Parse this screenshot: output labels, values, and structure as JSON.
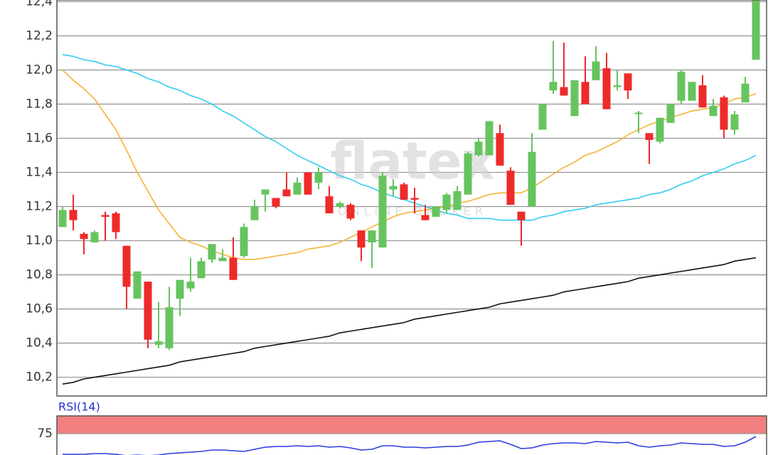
{
  "chart_data": [
    {
      "type": "candlestick",
      "open": [
        11.08,
        11.18,
        11.04,
        10.99,
        11.15,
        11.16,
        10.97,
        10.66,
        10.76,
        10.39,
        10.37,
        10.66,
        10.72,
        10.78,
        10.89,
        10.88,
        10.9,
        10.91,
        11.12,
        11.27,
        11.25,
        11.3,
        11.27,
        11.4,
        11.34,
        11.26,
        11.2,
        11.21,
        11.06,
        10.99,
        10.96,
        11.3,
        11.33,
        11.25,
        11.15,
        11.14,
        11.18,
        11.18,
        11.27,
        11.5,
        11.5,
        11.63,
        11.41,
        11.17,
        11.2,
        11.65,
        11.88,
        11.9,
        11.73,
        11.93,
        11.94,
        12.01,
        11.9,
        11.98,
        11.75,
        11.63,
        11.58,
        11.69,
        11.82,
        11.82,
        11.91,
        11.73,
        11.84,
        11.65,
        11.81,
        12.06
      ],
      "high": [
        11.2,
        11.27,
        11.05,
        11.06,
        11.17,
        11.17,
        10.97,
        10.82,
        10.76,
        10.64,
        10.73,
        10.77,
        10.9,
        10.9,
        10.98,
        10.95,
        11.02,
        11.1,
        11.24,
        11.3,
        11.25,
        11.4,
        11.37,
        11.4,
        11.43,
        11.32,
        11.23,
        11.22,
        11.06,
        11.06,
        11.4,
        11.36,
        11.34,
        11.31,
        11.21,
        11.2,
        11.28,
        11.32,
        11.52,
        11.6,
        11.7,
        11.68,
        11.43,
        11.17,
        11.63,
        11.8,
        12.17,
        12.16,
        11.94,
        12.08,
        12.14,
        12.1,
        12.0,
        11.98,
        11.76,
        11.63,
        11.72,
        11.8,
        12.0,
        11.93,
        11.97,
        11.83,
        11.85,
        11.76,
        11.96,
        12.42
      ],
      "low": [
        11.08,
        11.06,
        10.92,
        10.99,
        11.0,
        11.01,
        10.6,
        10.66,
        10.37,
        10.37,
        10.36,
        10.56,
        10.7,
        10.78,
        10.87,
        10.88,
        10.77,
        10.9,
        11.12,
        11.17,
        11.19,
        11.26,
        11.27,
        11.27,
        11.3,
        11.16,
        11.19,
        11.12,
        10.88,
        10.84,
        10.96,
        11.26,
        11.24,
        11.16,
        11.12,
        11.14,
        11.16,
        11.18,
        11.27,
        11.49,
        11.5,
        11.44,
        11.21,
        10.97,
        11.2,
        11.65,
        11.86,
        11.85,
        11.73,
        11.8,
        11.94,
        11.77,
        11.88,
        11.83,
        11.63,
        11.45,
        11.57,
        11.69,
        11.8,
        11.82,
        11.78,
        11.73,
        11.6,
        11.62,
        11.81,
        12.06
      ],
      "close": [
        11.18,
        11.12,
        11.01,
        11.05,
        11.14,
        11.05,
        10.73,
        10.82,
        10.42,
        10.41,
        10.61,
        10.77,
        10.76,
        10.88,
        10.98,
        10.9,
        10.77,
        11.08,
        11.2,
        11.3,
        11.2,
        11.26,
        11.34,
        11.27,
        11.4,
        11.16,
        11.22,
        11.13,
        10.96,
        11.06,
        11.38,
        11.32,
        11.24,
        11.24,
        11.12,
        11.2,
        11.27,
        11.29,
        11.51,
        11.58,
        11.7,
        11.44,
        11.21,
        11.12,
        11.52,
        11.8,
        11.93,
        11.85,
        11.94,
        11.8,
        12.05,
        11.77,
        11.91,
        11.88,
        11.75,
        11.59,
        11.72,
        11.8,
        11.99,
        11.93,
        11.78,
        11.79,
        11.65,
        11.74,
        11.92,
        12.42
      ],
      "up_color": "#66c45e",
      "down_color": "#ee2a2a",
      "series": [
        {
          "color": "#f5b335",
          "values": [
            12.0,
            11.94,
            11.89,
            11.83,
            11.74,
            11.65,
            11.53,
            11.4,
            11.29,
            11.18,
            11.1,
            11.02,
            10.99,
            10.97,
            10.94,
            10.92,
            10.9,
            10.89,
            10.89,
            10.9,
            10.91,
            10.92,
            10.93,
            10.95,
            10.96,
            10.97,
            10.99,
            11.02,
            11.05,
            11.08,
            11.11,
            11.14,
            11.16,
            11.17,
            11.18,
            11.19,
            11.2,
            11.22,
            11.23,
            11.25,
            11.27,
            11.28,
            11.28,
            11.28,
            11.31,
            11.35,
            11.39,
            11.43,
            11.46,
            11.5,
            11.52,
            11.55,
            11.58,
            11.62,
            11.65,
            11.68,
            11.7,
            11.72,
            11.74,
            11.76,
            11.77,
            11.78,
            11.8,
            11.83,
            11.84,
            11.86
          ]
        },
        {
          "color": "#33ccf0",
          "values": [
            12.09,
            12.08,
            12.06,
            12.05,
            12.03,
            12.02,
            12.0,
            11.98,
            11.95,
            11.93,
            11.9,
            11.88,
            11.85,
            11.83,
            11.8,
            11.76,
            11.73,
            11.69,
            11.65,
            11.61,
            11.58,
            11.54,
            11.5,
            11.47,
            11.44,
            11.41,
            11.38,
            11.36,
            11.33,
            11.31,
            11.28,
            11.26,
            11.24,
            11.22,
            11.2,
            11.18,
            11.16,
            11.15,
            11.13,
            11.13,
            11.13,
            11.12,
            11.12,
            11.12,
            11.12,
            11.14,
            11.15,
            11.17,
            11.18,
            11.19,
            11.21,
            11.22,
            11.23,
            11.24,
            11.25,
            11.27,
            11.28,
            11.3,
            11.33,
            11.35,
            11.38,
            11.4,
            11.42,
            11.45,
            11.47,
            11.5
          ]
        },
        {
          "color": "#111111",
          "values": [
            10.16,
            10.17,
            10.19,
            10.2,
            10.21,
            10.22,
            10.23,
            10.24,
            10.25,
            10.26,
            10.27,
            10.29,
            10.3,
            10.31,
            10.32,
            10.33,
            10.34,
            10.35,
            10.37,
            10.38,
            10.39,
            10.4,
            10.41,
            10.42,
            10.43,
            10.44,
            10.46,
            10.47,
            10.48,
            10.49,
            10.5,
            10.51,
            10.52,
            10.54,
            10.55,
            10.56,
            10.57,
            10.58,
            10.59,
            10.6,
            10.61,
            10.63,
            10.64,
            10.65,
            10.66,
            10.67,
            10.68,
            10.7,
            10.71,
            10.72,
            10.73,
            10.74,
            10.75,
            10.76,
            10.78,
            10.79,
            10.8,
            10.81,
            10.82,
            10.83,
            10.84,
            10.85,
            10.86,
            10.88,
            10.89,
            10.9
          ]
        }
      ],
      "ylim": [
        10.09,
        12.41
      ],
      "yticks": [
        {
          "value": 10.2,
          "label": "10,2"
        },
        {
          "value": 10.4,
          "label": "10,4"
        },
        {
          "value": 10.6,
          "label": "10,6"
        },
        {
          "value": 10.8,
          "label": "10,8"
        },
        {
          "value": 11.0,
          "label": "11,0"
        },
        {
          "value": 11.2,
          "label": "11,2"
        },
        {
          "value": 11.4,
          "label": "11,4"
        },
        {
          "value": 11.6,
          "label": "11,6"
        },
        {
          "value": 11.8,
          "label": "11,8"
        },
        {
          "value": 12.0,
          "label": "12,0"
        },
        {
          "value": 12.2,
          "label": "12,2"
        },
        {
          "value": 12.4,
          "label": "12,4"
        }
      ],
      "grid": true,
      "watermark": {
        "brand": "flatex",
        "tagline": "ONLINE BROKER"
      }
    },
    {
      "type": "line",
      "title": "RSI(14)",
      "series": [
        {
          "color": "#2a3be0",
          "values": [
            46,
            46,
            46,
            47,
            47,
            46,
            44,
            45,
            44,
            45,
            47,
            48,
            49,
            50,
            52,
            52,
            51,
            50,
            53,
            56,
            57,
            57,
            58,
            57,
            58,
            56,
            57,
            55,
            52,
            53,
            58,
            58,
            56,
            56,
            55,
            56,
            57,
            57,
            59,
            63,
            64,
            65,
            60,
            54,
            55,
            59,
            61,
            62,
            62,
            61,
            64,
            63,
            62,
            63,
            58,
            56,
            58,
            59,
            62,
            61,
            60,
            60,
            57,
            58,
            63,
            71
          ]
        }
      ],
      "bands": [
        {
          "from": 75,
          "to": 100,
          "color": "#f28080"
        }
      ],
      "ylim": [
        45,
        100
      ],
      "yticks": [
        75
      ],
      "grid": true
    }
  ]
}
